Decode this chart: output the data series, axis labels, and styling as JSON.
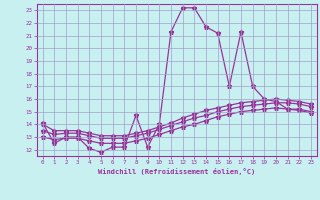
{
  "xlabel": "Windchill (Refroidissement éolien,°C)",
  "background_color": "#c8f0f0",
  "grid_color": "#a0a0c8",
  "line_color": "#993399",
  "xlim": [
    -0.5,
    23.5
  ],
  "ylim": [
    11.5,
    23.5
  ],
  "xticks": [
    0,
    1,
    2,
    3,
    4,
    5,
    6,
    7,
    8,
    9,
    10,
    11,
    12,
    13,
    14,
    15,
    16,
    17,
    18,
    19,
    20,
    21,
    22,
    23
  ],
  "yticks": [
    12,
    13,
    14,
    15,
    16,
    17,
    18,
    19,
    20,
    21,
    22,
    23
  ],
  "hours": [
    0,
    1,
    2,
    3,
    4,
    5,
    6,
    7,
    8,
    9,
    10,
    11,
    12,
    13,
    14,
    15,
    16,
    17,
    18,
    19,
    20,
    21,
    22,
    23
  ],
  "line1": [
    14.1,
    12.5,
    13.0,
    13.0,
    12.1,
    11.8,
    12.2,
    12.2,
    14.7,
    12.2,
    14.0,
    21.3,
    23.2,
    23.2,
    21.7,
    21.2,
    17.0,
    21.3,
    17.0,
    16.0,
    15.8,
    15.2,
    15.2,
    15.0
  ],
  "line2": [
    14.0,
    13.5,
    13.5,
    13.5,
    13.3,
    13.1,
    13.1,
    13.1,
    13.3,
    13.5,
    13.8,
    14.1,
    14.5,
    14.8,
    15.1,
    15.3,
    15.5,
    15.7,
    15.8,
    15.9,
    16.0,
    15.9,
    15.8,
    15.6
  ],
  "line3": [
    13.5,
    13.2,
    13.3,
    13.3,
    13.1,
    12.9,
    12.9,
    12.9,
    13.1,
    13.3,
    13.6,
    13.9,
    14.2,
    14.5,
    14.7,
    15.0,
    15.2,
    15.4,
    15.5,
    15.6,
    15.7,
    15.7,
    15.6,
    15.4
  ],
  "line4": [
    13.0,
    12.8,
    12.9,
    12.9,
    12.7,
    12.5,
    12.5,
    12.5,
    12.7,
    12.9,
    13.2,
    13.5,
    13.8,
    14.0,
    14.3,
    14.6,
    14.8,
    15.0,
    15.1,
    15.2,
    15.3,
    15.2,
    15.1,
    14.9
  ]
}
